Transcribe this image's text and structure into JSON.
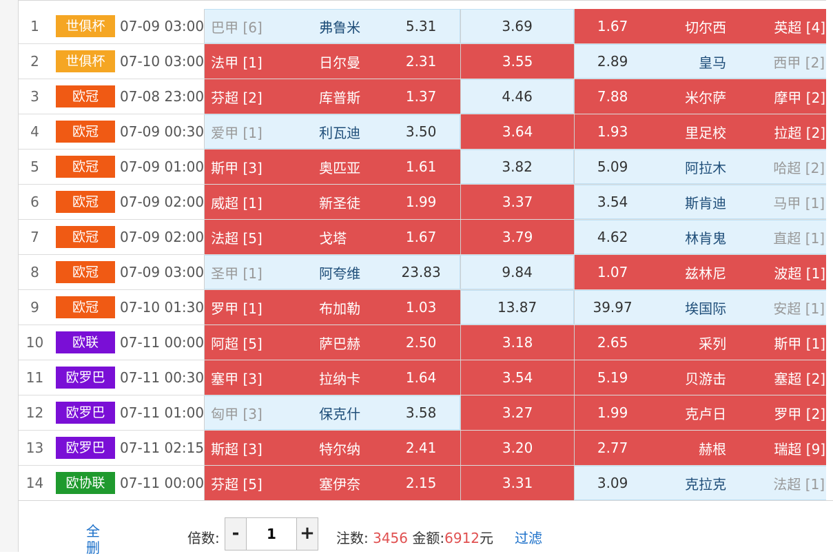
{
  "matches": [
    {
      "idx": "1",
      "league": "世俱杯",
      "color": "#f5a623",
      "time": "07-09 03:00",
      "home_rank": "巴甲 [6]",
      "home_team": "弗鲁米",
      "home_odd": "5.31",
      "home_sel": false,
      "draw_odd": "3.69",
      "draw_sel": false,
      "away_odd": "1.67",
      "away_team": "切尔西",
      "away_rank": "英超 [4]",
      "away_sel": true
    },
    {
      "idx": "2",
      "league": "世俱杯",
      "color": "#f5a623",
      "time": "07-10 03:00",
      "home_rank": "法甲 [1]",
      "home_team": "日尔曼",
      "home_odd": "2.31",
      "home_sel": true,
      "draw_odd": "3.55",
      "draw_sel": true,
      "away_odd": "2.89",
      "away_team": "皇马",
      "away_rank": "西甲 [2]",
      "away_sel": false
    },
    {
      "idx": "3",
      "league": "欧冠",
      "color": "#f05a14",
      "time": "07-08 23:00",
      "home_rank": "芬超 [2]",
      "home_team": "库普斯",
      "home_odd": "1.37",
      "home_sel": true,
      "draw_odd": "4.46",
      "draw_sel": false,
      "away_odd": "7.88",
      "away_team": "米尔萨",
      "away_rank": "摩甲 [2]",
      "away_sel": true
    },
    {
      "idx": "4",
      "league": "欧冠",
      "color": "#f05a14",
      "time": "07-09 00:30",
      "home_rank": "爱甲 [1]",
      "home_team": "利瓦迪",
      "home_odd": "3.50",
      "home_sel": false,
      "draw_odd": "3.64",
      "draw_sel": true,
      "away_odd": "1.93",
      "away_team": "里足校",
      "away_rank": "拉超 [2]",
      "away_sel": true
    },
    {
      "idx": "5",
      "league": "欧冠",
      "color": "#f05a14",
      "time": "07-09 01:00",
      "home_rank": "斯甲 [3]",
      "home_team": "奥匹亚",
      "home_odd": "1.61",
      "home_sel": true,
      "draw_odd": "3.82",
      "draw_sel": false,
      "away_odd": "5.09",
      "away_team": "阿拉木",
      "away_rank": "哈超 [2]",
      "away_sel": false
    },
    {
      "idx": "6",
      "league": "欧冠",
      "color": "#f05a14",
      "time": "07-09 02:00",
      "home_rank": "威超 [1]",
      "home_team": "新圣徒",
      "home_odd": "1.99",
      "home_sel": true,
      "draw_odd": "3.37",
      "draw_sel": true,
      "away_odd": "3.54",
      "away_team": "斯肯迪",
      "away_rank": "马甲 [1]",
      "away_sel": false
    },
    {
      "idx": "7",
      "league": "欧冠",
      "color": "#f05a14",
      "time": "07-09 02:00",
      "home_rank": "法超 [5]",
      "home_team": "戈塔",
      "home_odd": "1.67",
      "home_sel": true,
      "draw_odd": "3.79",
      "draw_sel": true,
      "away_odd": "4.62",
      "away_team": "林肯鬼",
      "away_rank": "直超 [1]",
      "away_sel": false
    },
    {
      "idx": "8",
      "league": "欧冠",
      "color": "#f05a14",
      "time": "07-09 03:00",
      "home_rank": "圣甲 [1]",
      "home_team": "阿夸维",
      "home_odd": "23.83",
      "home_sel": false,
      "draw_odd": "9.84",
      "draw_sel": false,
      "away_odd": "1.07",
      "away_team": "兹林尼",
      "away_rank": "波超 [1]",
      "away_sel": true
    },
    {
      "idx": "9",
      "league": "欧冠",
      "color": "#f05a14",
      "time": "07-10 01:30",
      "home_rank": "罗甲 [1]",
      "home_team": "布加勒",
      "home_odd": "1.03",
      "home_sel": true,
      "draw_odd": "13.87",
      "draw_sel": false,
      "away_odd": "39.97",
      "away_team": "埃国际",
      "away_rank": "安超 [1]",
      "away_sel": false
    },
    {
      "idx": "10",
      "league": "欧联",
      "color": "#7a0fd6",
      "time": "07-11 00:00",
      "home_rank": "阿超 [5]",
      "home_team": "萨巴赫",
      "home_odd": "2.50",
      "home_sel": true,
      "draw_odd": "3.18",
      "draw_sel": true,
      "away_odd": "2.65",
      "away_team": "采列",
      "away_rank": "斯甲 [1]",
      "away_sel": true
    },
    {
      "idx": "11",
      "league": "欧罗巴",
      "color": "#7a0fd6",
      "time": "07-11 00:30",
      "home_rank": "塞甲 [3]",
      "home_team": "拉纳卡",
      "home_odd": "1.64",
      "home_sel": true,
      "draw_odd": "3.54",
      "draw_sel": true,
      "away_odd": "5.19",
      "away_team": "贝游击",
      "away_rank": "塞超 [2]",
      "away_sel": true
    },
    {
      "idx": "12",
      "league": "欧罗巴",
      "color": "#7a0fd6",
      "time": "07-11 01:00",
      "home_rank": "匈甲 [3]",
      "home_team": "保克什",
      "home_odd": "3.58",
      "home_sel": false,
      "draw_odd": "3.27",
      "draw_sel": true,
      "away_odd": "1.99",
      "away_team": "克卢日",
      "away_rank": "罗甲 [2]",
      "away_sel": true
    },
    {
      "idx": "13",
      "league": "欧罗巴",
      "color": "#7a0fd6",
      "time": "07-11 02:15",
      "home_rank": "斯超 [3]",
      "home_team": "特尔纳",
      "home_odd": "2.41",
      "home_sel": true,
      "draw_odd": "3.20",
      "draw_sel": true,
      "away_odd": "2.77",
      "away_team": "赫根",
      "away_rank": "瑞超 [9]",
      "away_sel": true
    },
    {
      "idx": "14",
      "league": "欧协联",
      "color": "#1f9a2e",
      "time": "07-11 00:00",
      "home_rank": "芬超 [5]",
      "home_team": "塞伊奈",
      "home_odd": "2.15",
      "home_sel": true,
      "draw_odd": "3.31",
      "draw_sel": true,
      "away_odd": "3.09",
      "away_team": "克拉克",
      "away_rank": "法超 [1]",
      "away_sel": false
    }
  ],
  "footer": {
    "clear_all": "全删",
    "multiplier_label": "倍数:",
    "minus": "-",
    "plus": "+",
    "multiplier_value": "1",
    "bets_label": "注数:",
    "bets_value": "3456",
    "amount_label": "金额:",
    "amount_value": "6912",
    "amount_unit": "元",
    "filter": "过滤"
  },
  "colors": {
    "selected_red": "#e05050",
    "unselected_blue": "#e2f2fc",
    "link_blue": "#1a6fc9"
  }
}
